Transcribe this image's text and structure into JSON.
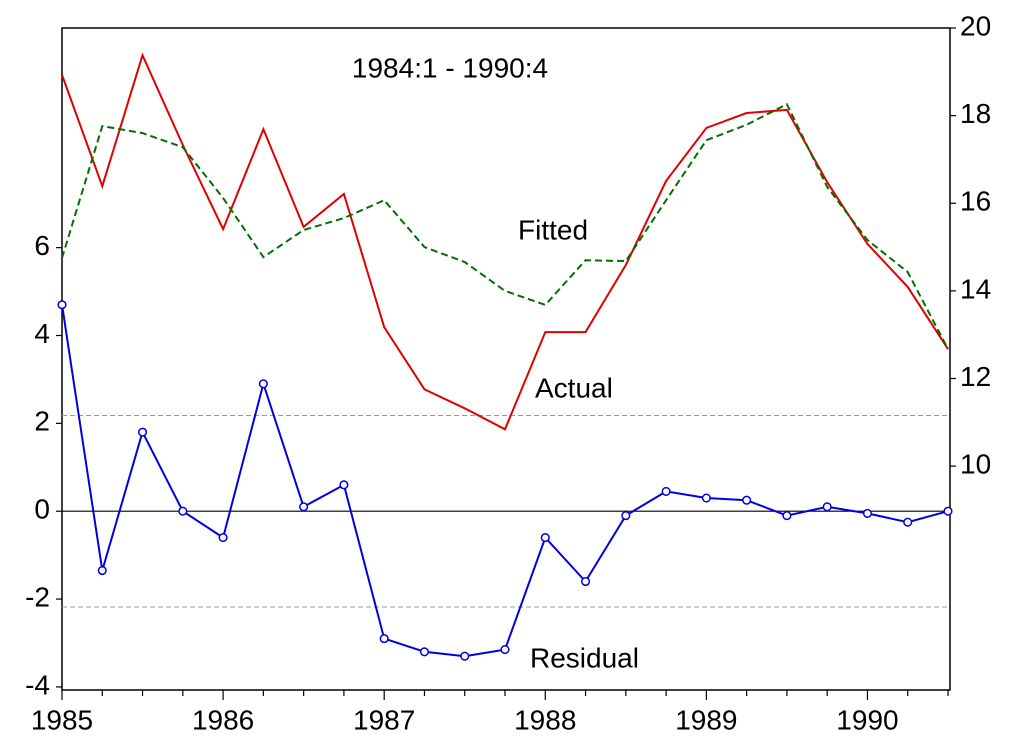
{
  "chart_data": {
    "type": "line",
    "title": "1984:1 - 1990:4",
    "categories": [
      "1985",
      null,
      null,
      null,
      "1986",
      null,
      null,
      null,
      "1987",
      null,
      null,
      null,
      "1988",
      null,
      null,
      null,
      "1989",
      null,
      null,
      null,
      "1990",
      null,
      null
    ],
    "series": [
      {
        "name": "Actual",
        "color": "#e00000",
        "axis": "y2",
        "dashed": false,
        "markers": false,
        "values": [
          18.93,
          16.39,
          19.38,
          17.33,
          15.41,
          17.69,
          15.46,
          16.21,
          13.17,
          11.75,
          11.32,
          10.84,
          13.06,
          13.06,
          14.59,
          16.51,
          17.72,
          18.06,
          18.13,
          16.48,
          15.07,
          14.09,
          12.67
        ]
      },
      {
        "name": "Fitted",
        "color": "#007000",
        "axis": "y2",
        "dashed": true,
        "markers": false,
        "values": [
          14.75,
          17.76,
          17.6,
          17.28,
          16.12,
          14.77,
          15.39,
          15.66,
          16.07,
          15.0,
          14.66,
          14.0,
          13.68,
          14.7,
          14.68,
          16.07,
          17.44,
          17.79,
          18.26,
          16.37,
          15.16,
          14.43,
          12.67
        ]
      },
      {
        "name": "Residual",
        "color": "#0000e0",
        "axis": "y",
        "dashed": false,
        "markers": true,
        "values": [
          4.7,
          -1.35,
          1.8,
          0.0,
          -0.6,
          2.9,
          0.1,
          0.6,
          -2.9,
          -3.2,
          -3.3,
          -3.15,
          -0.6,
          -1.6,
          -0.1,
          0.45,
          0.3,
          0.25,
          -0.1,
          0.1,
          -0.05,
          -0.25,
          0.0
        ]
      }
    ],
    "ylim": [
      -4.07,
      11.0
    ],
    "yticks": [
      -4,
      -2,
      0,
      2,
      4,
      6
    ],
    "y2lim": [
      4.89,
      20.0
    ],
    "y2ticks": [
      10,
      12,
      14,
      16,
      18,
      20
    ],
    "zero_line": 0,
    "std_lines": [
      2.18,
      -2.18
    ]
  }
}
